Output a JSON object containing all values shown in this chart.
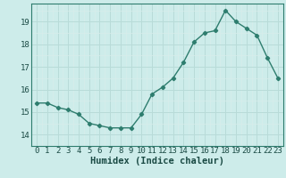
{
  "x": [
    0,
    1,
    2,
    3,
    4,
    5,
    6,
    7,
    8,
    9,
    10,
    11,
    12,
    13,
    14,
    15,
    16,
    17,
    18,
    19,
    20,
    21,
    22,
    23
  ],
  "y": [
    15.4,
    15.4,
    15.2,
    15.1,
    14.9,
    14.5,
    14.4,
    14.3,
    14.3,
    14.3,
    14.9,
    15.8,
    16.1,
    16.5,
    17.2,
    18.1,
    18.5,
    18.6,
    19.5,
    19.0,
    18.7,
    18.4,
    17.4,
    16.5
  ],
  "line_color": "#2e7d6e",
  "marker": "D",
  "marker_size": 2.2,
  "bg_color": "#cdecea",
  "grid_color_major": "#b8dbd8",
  "grid_color_minor": "#cdecea",
  "xlabel": "Humidex (Indice chaleur)",
  "xlabel_fontsize": 7.5,
  "ylabel_ticks": [
    14,
    15,
    16,
    17,
    18,
    19
  ],
  "ylim": [
    13.7,
    19.8
  ],
  "xlim": [
    -0.5,
    23.5
  ],
  "xtick_labels": [
    "0",
    "1",
    "2",
    "3",
    "4",
    "5",
    "6",
    "7",
    "8",
    "9",
    "10",
    "11",
    "12",
    "13",
    "14",
    "15",
    "16",
    "17",
    "18",
    "19",
    "20",
    "21",
    "22",
    "23"
  ],
  "tick_fontsize": 6.5,
  "line_width": 1.0
}
